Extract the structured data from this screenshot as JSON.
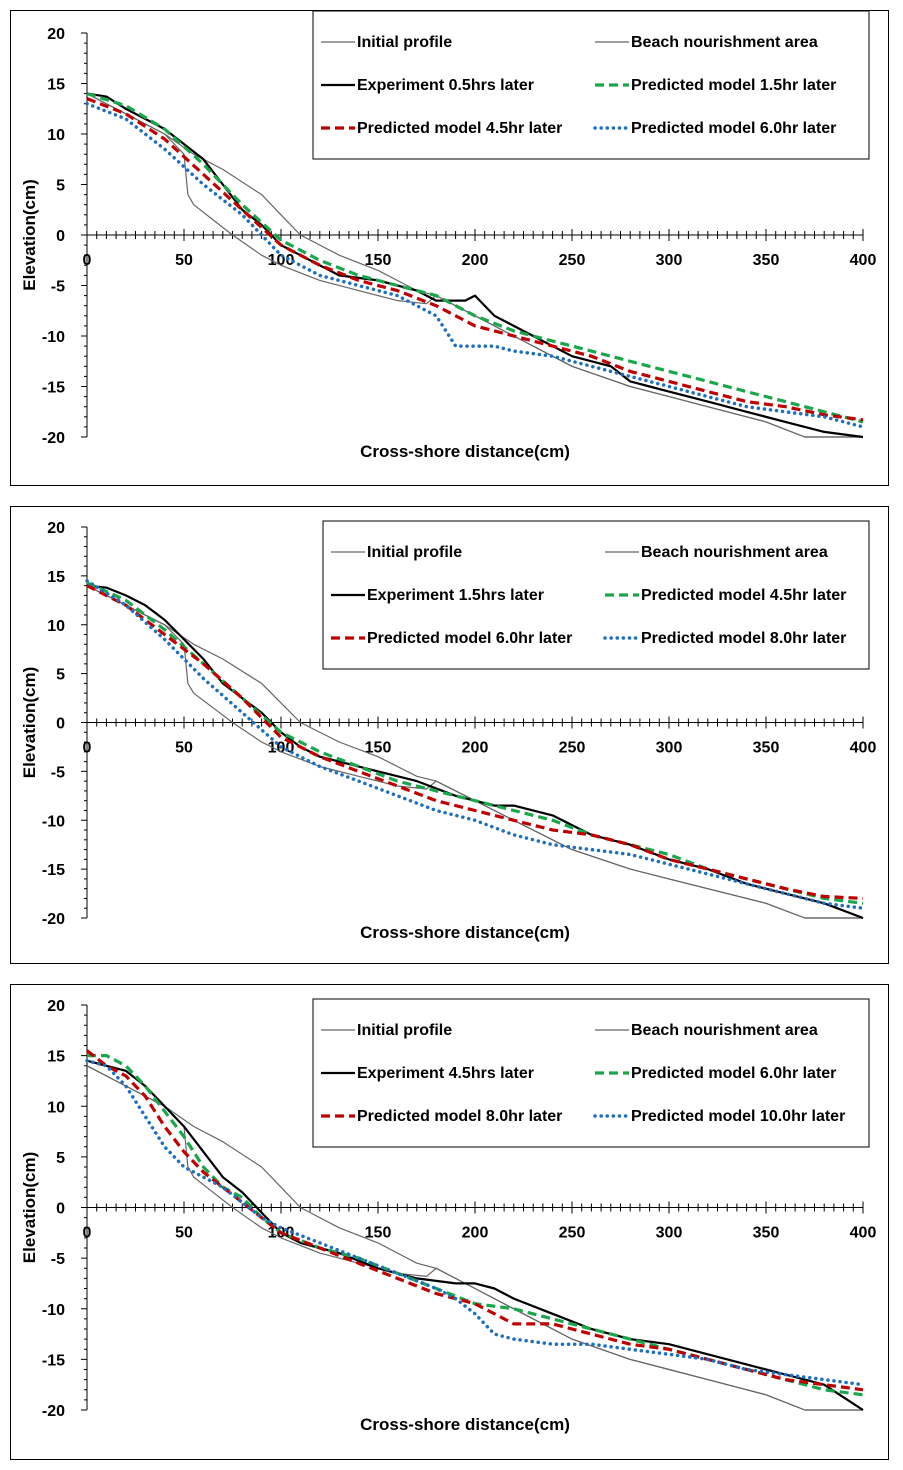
{
  "chart_data": [
    {
      "type": "line",
      "xlabel": "Cross-shore distance(cm)",
      "ylabel": "Elevation(cm)",
      "xlim": [
        0,
        400
      ],
      "ylim": [
        -20,
        20
      ],
      "xticks": [
        0,
        50,
        100,
        150,
        200,
        250,
        300,
        350,
        400
      ],
      "yticks": [
        20,
        15,
        10,
        5,
        0,
        -5,
        -10,
        -15,
        -20
      ],
      "legend_position": "top-right",
      "series": [
        {
          "name": "Initial profile",
          "color": "#666666",
          "style": "solid-thin",
          "x": [
            0,
            20,
            40,
            55,
            70,
            90,
            100,
            110,
            130,
            150,
            165,
            170,
            180,
            200,
            220,
            250,
            280,
            300,
            320,
            350,
            370,
            400
          ],
          "y": [
            14,
            12,
            10,
            8,
            6.5,
            4,
            2,
            0,
            -2,
            -3.5,
            -5,
            -5.5,
            -6,
            -8,
            -10,
            -13,
            -15,
            -16,
            -17,
            -18.5,
            -20,
            -20
          ]
        },
        {
          "name": "Beach nourishment area",
          "color": "#666666",
          "style": "solid-thin",
          "x": [
            0,
            20,
            40,
            50,
            52,
            55,
            65,
            75,
            90,
            100,
            120,
            140,
            160,
            175,
            180,
            200,
            220,
            250,
            280,
            300,
            330,
            350,
            370,
            400
          ],
          "y": [
            14,
            12,
            10,
            8,
            4,
            3,
            1.5,
            0,
            -2,
            -3,
            -4.5,
            -5.5,
            -6.5,
            -6.8,
            -6,
            -8,
            -10,
            -13,
            -15,
            -16,
            -17.5,
            -18.5,
            -20,
            -20
          ]
        },
        {
          "name": "Experiment 0.5hrs later",
          "color": "#000000",
          "style": "solid",
          "x": [
            0,
            10,
            20,
            30,
            40,
            50,
            60,
            70,
            80,
            90,
            100,
            110,
            120,
            130,
            150,
            170,
            180,
            190,
            195,
            200,
            205,
            210,
            220,
            230,
            250,
            270,
            280,
            290,
            300,
            320,
            340,
            360,
            380,
            400
          ],
          "y": [
            14,
            13.7,
            12.5,
            11.5,
            10.5,
            9,
            7.5,
            5,
            2.5,
            1,
            -1,
            -2,
            -3,
            -4,
            -4.5,
            -5.5,
            -6.5,
            -6.5,
            -6.5,
            -6,
            -7,
            -8,
            -9,
            -10,
            -12,
            -13,
            -14.5,
            -15,
            -15.5,
            -16.5,
            -17.5,
            -18.5,
            -19.5,
            -20
          ]
        },
        {
          "name": "Predicted model 1.5hr later",
          "color": "#1aa64a",
          "style": "dashed",
          "x": [
            0,
            20,
            40,
            60,
            80,
            100,
            120,
            140,
            160,
            180,
            200,
            220,
            240,
            260,
            280,
            300,
            320,
            340,
            360,
            380,
            400
          ],
          "y": [
            14,
            12.8,
            10.5,
            7,
            3,
            -0.5,
            -2.5,
            -4,
            -5,
            -6,
            -8,
            -9.5,
            -10.5,
            -11.5,
            -12.5,
            -13.5,
            -14.5,
            -15.5,
            -16.5,
            -17.5,
            -18.5
          ]
        },
        {
          "name": "Predicted model 4.5hr later",
          "color": "#c00000",
          "style": "dashed",
          "x": [
            0,
            20,
            40,
            60,
            80,
            100,
            120,
            140,
            160,
            180,
            200,
            220,
            240,
            260,
            280,
            300,
            320,
            340,
            360,
            380,
            400
          ],
          "y": [
            13.5,
            12,
            9.5,
            6,
            2.5,
            -1,
            -3,
            -4.5,
            -5.5,
            -7,
            -9,
            -10,
            -11,
            -12,
            -13.5,
            -14.5,
            -15.5,
            -16.5,
            -17,
            -17.8,
            -18.3
          ]
        },
        {
          "name": "Predicted model 6.0hr later",
          "color": "#1f6fc0",
          "style": "dotted",
          "x": [
            0,
            20,
            40,
            60,
            80,
            100,
            120,
            140,
            160,
            180,
            190,
            200,
            210,
            220,
            240,
            260,
            280,
            300,
            320,
            340,
            360,
            380,
            400
          ],
          "y": [
            13,
            11.5,
            8.5,
            5,
            2,
            -2,
            -4,
            -5,
            -6,
            -8,
            -11,
            -11,
            -11,
            -11.5,
            -12,
            -13,
            -14,
            -15,
            -16,
            -17,
            -17.5,
            -18,
            -19
          ]
        }
      ]
    },
    {
      "type": "line",
      "xlabel": "Cross-shore distance(cm)",
      "ylabel": "Elevation(cm)",
      "xlim": [
        0,
        400
      ],
      "ylim": [
        -20,
        20
      ],
      "xticks": [
        0,
        50,
        100,
        150,
        200,
        250,
        300,
        350,
        400
      ],
      "yticks": [
        20,
        15,
        10,
        5,
        0,
        -5,
        -10,
        -15,
        -20
      ],
      "legend_position": "top-right",
      "series": [
        {
          "name": "Initial profile",
          "color": "#666666",
          "style": "solid-thin",
          "x": [
            0,
            20,
            40,
            55,
            70,
            90,
            100,
            110,
            130,
            150,
            165,
            170,
            180,
            200,
            220,
            250,
            280,
            300,
            320,
            350,
            370,
            400
          ],
          "y": [
            14,
            12,
            10,
            8,
            6.5,
            4,
            2,
            0,
            -2,
            -3.5,
            -5,
            -5.5,
            -6,
            -8,
            -10,
            -13,
            -15,
            -16,
            -17,
            -18.5,
            -20,
            -20
          ]
        },
        {
          "name": "Beach nourishment area",
          "color": "#666666",
          "style": "solid-thin",
          "x": [
            0,
            20,
            40,
            50,
            52,
            55,
            65,
            75,
            90,
            100,
            120,
            140,
            160,
            175,
            180,
            200,
            220,
            250,
            280,
            300,
            330,
            350,
            370,
            400
          ],
          "y": [
            14,
            12,
            10,
            8,
            4,
            3,
            1.5,
            0,
            -2,
            -3,
            -4.5,
            -5.5,
            -6.5,
            -6.8,
            -6,
            -8,
            -10,
            -13,
            -15,
            -16,
            -17.5,
            -18.5,
            -20,
            -20
          ]
        },
        {
          "name": "Experiment 1.5hrs later",
          "color": "#000000",
          "style": "solid",
          "x": [
            0,
            10,
            20,
            30,
            40,
            50,
            60,
            70,
            80,
            90,
            100,
            110,
            120,
            130,
            150,
            170,
            190,
            200,
            210,
            220,
            240,
            250,
            260,
            280,
            300,
            320,
            340,
            360,
            380,
            400
          ],
          "y": [
            14,
            13.8,
            13,
            12,
            10.5,
            8.5,
            6.5,
            4,
            2.5,
            1,
            -1,
            -2.5,
            -3.5,
            -4,
            -5,
            -6,
            -7.5,
            -8,
            -8.5,
            -8.5,
            -9.5,
            -10.5,
            -11.5,
            -12.5,
            -14,
            -15,
            -16.5,
            -17.5,
            -18.5,
            -20
          ]
        },
        {
          "name": "Predicted model 4.5hr later",
          "color": "#1aa64a",
          "style": "dashed",
          "x": [
            0,
            20,
            40,
            60,
            80,
            100,
            120,
            140,
            160,
            180,
            200,
            220,
            240,
            260,
            280,
            300,
            320,
            340,
            360,
            380,
            400
          ],
          "y": [
            14.3,
            12.5,
            9.5,
            6,
            2.5,
            -1,
            -3,
            -4.5,
            -6,
            -7,
            -8,
            -9,
            -10,
            -11.5,
            -12.5,
            -13.5,
            -15,
            -16,
            -17,
            -18,
            -18.5
          ]
        },
        {
          "name": "Predicted model 6.0hr later",
          "color": "#c00000",
          "style": "dashed",
          "x": [
            0,
            20,
            40,
            60,
            80,
            100,
            120,
            140,
            160,
            180,
            200,
            220,
            240,
            260,
            280,
            300,
            320,
            340,
            360,
            380,
            400
          ],
          "y": [
            14,
            12,
            9,
            6,
            2.5,
            -1.5,
            -3.5,
            -5,
            -6.5,
            -8,
            -9,
            -10,
            -11,
            -11.5,
            -12.5,
            -14,
            -15,
            -16,
            -17,
            -17.8,
            -18
          ]
        },
        {
          "name": "Predicted model 8.0hr later",
          "color": "#1f6fc0",
          "style": "dotted",
          "x": [
            0,
            20,
            40,
            60,
            80,
            100,
            120,
            140,
            160,
            180,
            200,
            220,
            240,
            260,
            280,
            300,
            320,
            340,
            360,
            380,
            400
          ],
          "y": [
            14.5,
            12,
            8.5,
            4.5,
            1,
            -2.5,
            -4.5,
            -6,
            -7.5,
            -9,
            -10,
            -11.5,
            -12.5,
            -13,
            -13.5,
            -14.5,
            -15.5,
            -16.5,
            -17.5,
            -18.5,
            -19
          ]
        }
      ]
    },
    {
      "type": "line",
      "xlabel": "Cross-shore distance(cm)",
      "ylabel": "Elevation(cm)",
      "xlim": [
        0,
        400
      ],
      "ylim": [
        -20,
        20
      ],
      "xticks": [
        0,
        50,
        100,
        150,
        200,
        250,
        300,
        350,
        400
      ],
      "yticks": [
        20,
        15,
        10,
        5,
        0,
        -5,
        -10,
        -15,
        -20
      ],
      "legend_position": "top-right",
      "series": [
        {
          "name": "Initial profile",
          "color": "#666666",
          "style": "solid-thin",
          "x": [
            0,
            20,
            40,
            55,
            70,
            90,
            100,
            110,
            130,
            150,
            165,
            170,
            180,
            200,
            220,
            250,
            280,
            300,
            320,
            350,
            370,
            400
          ],
          "y": [
            14,
            12,
            10,
            8,
            6.5,
            4,
            2,
            0,
            -2,
            -3.5,
            -5,
            -5.5,
            -6,
            -8,
            -10,
            -13,
            -15,
            -16,
            -17,
            -18.5,
            -20,
            -20
          ]
        },
        {
          "name": "Beach nourishment area",
          "color": "#666666",
          "style": "solid-thin",
          "x": [
            0,
            20,
            40,
            50,
            52,
            55,
            65,
            75,
            90,
            100,
            120,
            140,
            160,
            175,
            180,
            200,
            220,
            250,
            280,
            300,
            330,
            350,
            370,
            400
          ],
          "y": [
            14,
            12,
            10,
            8,
            4,
            3,
            1.5,
            0,
            -2,
            -3,
            -4.5,
            -5.5,
            -6.5,
            -6.8,
            -6,
            -8,
            -10,
            -13,
            -15,
            -16,
            -17.5,
            -18.5,
            -20,
            -20
          ]
        },
        {
          "name": "Experiment 4.5hrs later",
          "color": "#000000",
          "style": "solid",
          "x": [
            0,
            10,
            20,
            30,
            40,
            50,
            60,
            70,
            80,
            90,
            100,
            110,
            120,
            130,
            150,
            170,
            190,
            200,
            210,
            220,
            240,
            260,
            280,
            300,
            320,
            340,
            360,
            380,
            400
          ],
          "y": [
            14.5,
            14,
            13.5,
            12,
            10,
            8,
            5.5,
            3,
            1.5,
            -0.5,
            -2.5,
            -3.5,
            -4,
            -4.5,
            -6,
            -7,
            -7.5,
            -7.5,
            -8,
            -9,
            -10.5,
            -12,
            -13,
            -13.5,
            -14.5,
            -15.5,
            -16.5,
            -17.5,
            -20
          ]
        },
        {
          "name": "Predicted model 6.0hr later",
          "color": "#1aa64a",
          "style": "dashed",
          "x": [
            0,
            10,
            20,
            30,
            40,
            50,
            60,
            70,
            80,
            90,
            100,
            120,
            140,
            160,
            180,
            200,
            220,
            240,
            260,
            280,
            300,
            320,
            340,
            360,
            380,
            400
          ],
          "y": [
            15,
            15,
            14,
            12,
            9.5,
            7,
            4,
            2,
            1,
            -1,
            -2.5,
            -4,
            -5,
            -6.5,
            -8,
            -9.5,
            -10,
            -11,
            -12,
            -13,
            -14,
            -15,
            -16,
            -17,
            -18,
            -18.5
          ]
        },
        {
          "name": "Predicted model 8.0hr later",
          "color": "#c00000",
          "style": "dashed",
          "x": [
            0,
            10,
            20,
            30,
            40,
            50,
            60,
            70,
            80,
            90,
            100,
            120,
            140,
            160,
            180,
            200,
            220,
            240,
            260,
            280,
            300,
            320,
            340,
            360,
            380,
            400
          ],
          "y": [
            15.5,
            14,
            13,
            11,
            8,
            5.5,
            3.5,
            2,
            0.5,
            -1,
            -2.5,
            -4,
            -5.5,
            -7,
            -8.5,
            -9.5,
            -11.5,
            -11.5,
            -12.5,
            -13.5,
            -14,
            -15,
            -16,
            -17,
            -17.5,
            -18
          ]
        },
        {
          "name": "Predicted model 10.0hr later",
          "color": "#1f6fc0",
          "style": "dotted",
          "x": [
            0,
            10,
            20,
            30,
            40,
            50,
            60,
            70,
            80,
            90,
            100,
            120,
            140,
            160,
            180,
            190,
            200,
            210,
            220,
            240,
            260,
            280,
            300,
            320,
            340,
            360,
            380,
            400
          ],
          "y": [
            14.5,
            14,
            12,
            9,
            6,
            4,
            3,
            2,
            0.5,
            -1,
            -2,
            -3.5,
            -5,
            -6.5,
            -8,
            -9,
            -10.5,
            -12.5,
            -13,
            -13.5,
            -13.5,
            -14,
            -14.5,
            -15,
            -16,
            -16.5,
            -17,
            -17.5
          ]
        }
      ]
    }
  ]
}
